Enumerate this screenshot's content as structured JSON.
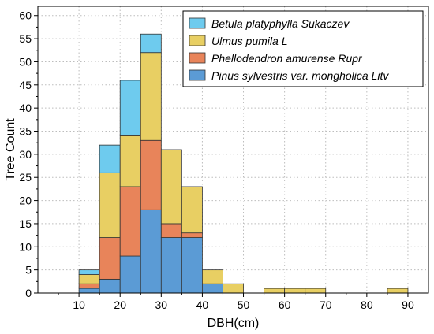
{
  "chart_data": {
    "type": "bar",
    "stacked": true,
    "xlabel": "DBH(cm)",
    "ylabel": "Tree Count",
    "xlim": [
      0,
      95
    ],
    "ylim": [
      0,
      62
    ],
    "xticks": [
      10,
      20,
      30,
      40,
      50,
      60,
      70,
      80,
      90
    ],
    "yticks": [
      0,
      5,
      10,
      15,
      20,
      25,
      30,
      35,
      40,
      45,
      50,
      55,
      60
    ],
    "grid": true,
    "legend_position": "top-right",
    "bin_width": 5,
    "bin_starts": [
      10,
      15,
      20,
      25,
      30,
      35,
      40,
      45,
      55,
      60,
      65,
      85
    ],
    "series": [
      {
        "name": "Pinus sylvestris var. mongholica Litv",
        "color": "#5b9bd5",
        "values": [
          1,
          3,
          8,
          18,
          12,
          12,
          2,
          0,
          0,
          0,
          0,
          0
        ]
      },
      {
        "name": "Phellodendron amurense Rupr",
        "color": "#e8845a",
        "values": [
          1,
          9,
          15,
          15,
          3,
          1,
          0,
          0,
          0,
          0,
          0,
          0
        ]
      },
      {
        "name": "Ulmus pumila L",
        "color": "#e8cf63",
        "values": [
          2,
          14,
          11,
          19,
          16,
          10,
          3,
          2,
          1,
          1,
          1,
          1
        ]
      },
      {
        "name": "Betula platyphylla Sukaczev",
        "color": "#6ecbee",
        "values": [
          1,
          6,
          12,
          4,
          0,
          0,
          0,
          0,
          0,
          0,
          0,
          0
        ]
      }
    ],
    "legend_order": [
      3,
      2,
      1,
      0
    ]
  }
}
